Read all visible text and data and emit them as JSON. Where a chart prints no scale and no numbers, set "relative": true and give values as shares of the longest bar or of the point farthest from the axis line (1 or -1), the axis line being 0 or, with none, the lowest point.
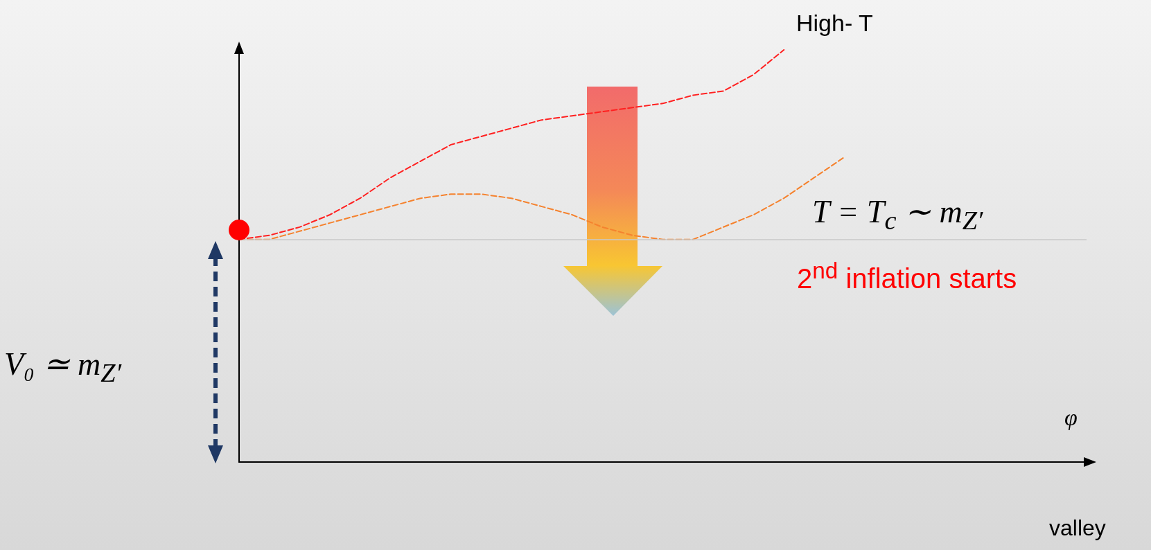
{
  "chart_data": {
    "type": "line",
    "relative": true,
    "categories": [
      null,
      null,
      null,
      null,
      null,
      null,
      null,
      null,
      null,
      null,
      null,
      null,
      null,
      null,
      null,
      null,
      null,
      null,
      null,
      null,
      null,
      null,
      null,
      null,
      null,
      null,
      null,
      null,
      null
    ],
    "series": [
      {
        "color": "#ff2020",
        "values": [
          0.54,
          0.55,
          0.57,
          0.6,
          0.64,
          0.69,
          0.73,
          0.77,
          0.79,
          0.81,
          0.83,
          0.84,
          0.85,
          0.86,
          0.87,
          0.89,
          0.9,
          0.94,
          1,
          null,
          null,
          null,
          null,
          null,
          null,
          null,
          null,
          null,
          null
        ]
      },
      {
        "color": "#f5822e",
        "values": [
          0.54,
          0.54,
          0.56,
          0.58,
          0.6,
          0.62,
          0.64,
          0.65,
          0.65,
          0.64,
          0.62,
          0.6,
          0.57,
          0.55,
          0.54,
          0.54,
          0.57,
          0.6,
          0.64,
          0.69,
          0.74,
          null,
          null,
          null,
          null,
          null,
          null,
          null,
          null
        ]
      }
    ],
    "line_style": "dashed",
    "marker": "none",
    "grid": false,
    "ref_lines": [
      {
        "axis": "y",
        "value": 0.54,
        "color": "#c8c8c8"
      }
    ],
    "annotations": [
      "High- T",
      "T = T$_{c}$ ∼ m$_{Z′}$",
      "2$^{nd}$ inflation starts",
      "V₀ ≃ m$_{Z′}$",
      "φ",
      "valley"
    ]
  }
}
